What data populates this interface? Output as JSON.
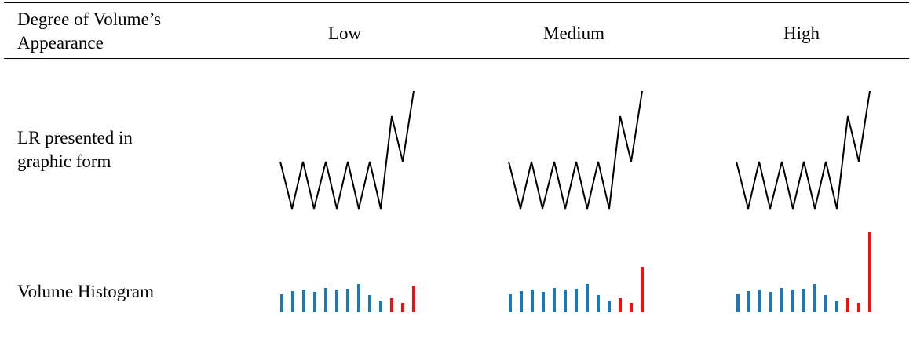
{
  "header": {
    "row_label_line1": "Degree of  Volume’s",
    "row_label_line2": "Appearance",
    "columns": [
      "Low",
      "Medium",
      "High"
    ]
  },
  "rows": {
    "lr_label_line1": "LR presented in",
    "lr_label_line2": "graphic form",
    "volume_label": "Volume Histogram"
  },
  "colors": {
    "line": "#000000",
    "bar_blue": "#1f77b4",
    "bar_red": "#ee1111"
  },
  "histograms": [
    {
      "column": "Low",
      "bars": [
        {
          "value": 23,
          "color": "blue"
        },
        {
          "value": 27,
          "color": "blue"
        },
        {
          "value": 29,
          "color": "blue"
        },
        {
          "value": 26,
          "color": "blue"
        },
        {
          "value": 31,
          "color": "blue"
        },
        {
          "value": 29,
          "color": "blue"
        },
        {
          "value": 30,
          "color": "blue"
        },
        {
          "value": 36,
          "color": "blue"
        },
        {
          "value": 22,
          "color": "blue"
        },
        {
          "value": 15,
          "color": "blue"
        },
        {
          "value": 18,
          "color": "red"
        },
        {
          "value": 12,
          "color": "red"
        },
        {
          "value": 34,
          "color": "red"
        }
      ]
    },
    {
      "column": "Medium",
      "bars": [
        {
          "value": 23,
          "color": "blue"
        },
        {
          "value": 27,
          "color": "blue"
        },
        {
          "value": 29,
          "color": "blue"
        },
        {
          "value": 26,
          "color": "blue"
        },
        {
          "value": 31,
          "color": "blue"
        },
        {
          "value": 29,
          "color": "blue"
        },
        {
          "value": 30,
          "color": "blue"
        },
        {
          "value": 36,
          "color": "blue"
        },
        {
          "value": 22,
          "color": "blue"
        },
        {
          "value": 15,
          "color": "blue"
        },
        {
          "value": 18,
          "color": "red"
        },
        {
          "value": 12,
          "color": "red"
        },
        {
          "value": 58,
          "color": "red"
        }
      ]
    },
    {
      "column": "High",
      "bars": [
        {
          "value": 23,
          "color": "blue"
        },
        {
          "value": 27,
          "color": "blue"
        },
        {
          "value": 29,
          "color": "blue"
        },
        {
          "value": 26,
          "color": "blue"
        },
        {
          "value": 31,
          "color": "blue"
        },
        {
          "value": 29,
          "color": "blue"
        },
        {
          "value": 30,
          "color": "blue"
        },
        {
          "value": 36,
          "color": "blue"
        },
        {
          "value": 22,
          "color": "blue"
        },
        {
          "value": 15,
          "color": "blue"
        },
        {
          "value": 18,
          "color": "red"
        },
        {
          "value": 12,
          "color": "red"
        },
        {
          "value": 102,
          "color": "red"
        }
      ]
    }
  ]
}
